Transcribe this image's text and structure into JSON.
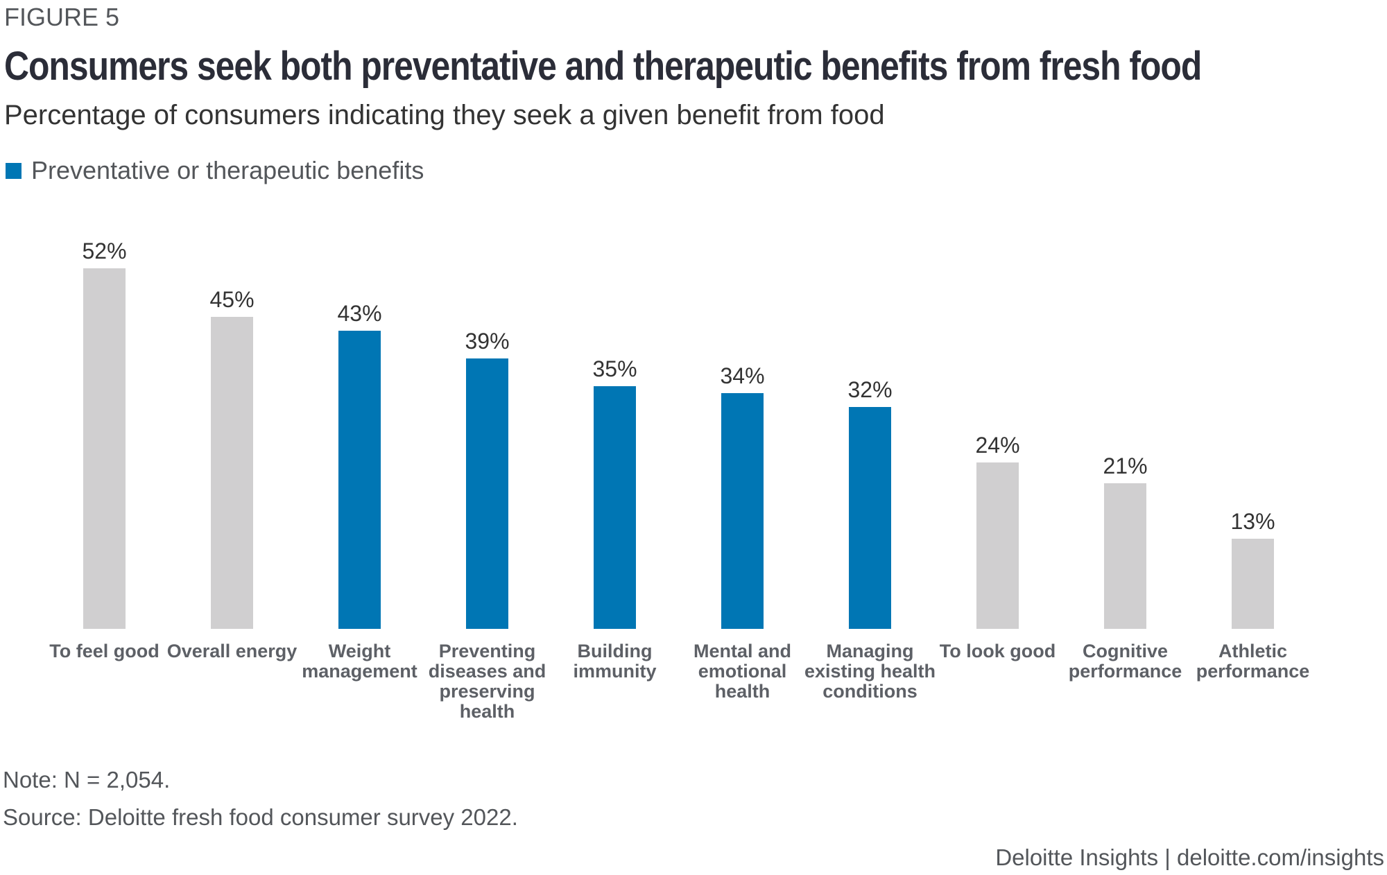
{
  "figure_label": "FIGURE 5",
  "title": "Consumers seek both preventative and therapeutic benefits from fresh food",
  "subtitle": "Percentage of consumers indicating they seek a given benefit from food",
  "legend": {
    "label": "Preventative or therapeutic benefits",
    "color": "#0076b4"
  },
  "colors": {
    "highlight": "#0076b4",
    "neutral": "#d0cfd0"
  },
  "chart_data": {
    "type": "bar",
    "title": "Consumers seek both preventative and therapeutic benefits from fresh food",
    "subtitle": "Percentage of consumers indicating they seek a given benefit from food",
    "xlabel": "",
    "ylabel": "",
    "ylim": [
      0,
      52
    ],
    "grid": false,
    "legend_position": "top-left",
    "categories": [
      "To feel good",
      "Overall energy",
      "Weight management",
      "Preventing diseases and preserving health",
      "Building immunity",
      "Mental and emotional health",
      "Managing existing health conditions",
      "To look good",
      "Cognitive performance",
      "Athletic performance"
    ],
    "category_label_lines": [
      [
        "To feel good"
      ],
      [
        "Overall energy"
      ],
      [
        "Weight",
        "management"
      ],
      [
        "Preventing",
        "diseases and",
        "preserving",
        "health"
      ],
      [
        "Building",
        "immunity"
      ],
      [
        "Mental and",
        "emotional",
        "health"
      ],
      [
        "Managing",
        "existing health",
        "conditions"
      ],
      [
        "To look good"
      ],
      [
        "Cognitive",
        "performance"
      ],
      [
        "Athletic",
        "performance"
      ]
    ],
    "values": [
      52,
      45,
      43,
      39,
      35,
      34,
      32,
      24,
      21,
      13
    ],
    "value_labels": [
      "52%",
      "45%",
      "43%",
      "39%",
      "35%",
      "34%",
      "32%",
      "24%",
      "21%",
      "13%"
    ],
    "unit": "%",
    "highlighted": [
      false,
      false,
      true,
      true,
      true,
      true,
      true,
      false,
      false,
      false
    ],
    "legend": [
      "Preventative or therapeutic benefits"
    ]
  },
  "notes": {
    "note": "Note: N = 2,054.",
    "source": "Source: Deloitte fresh food consumer survey 2022."
  },
  "footer": "Deloitte Insights | deloitte.com/insights"
}
